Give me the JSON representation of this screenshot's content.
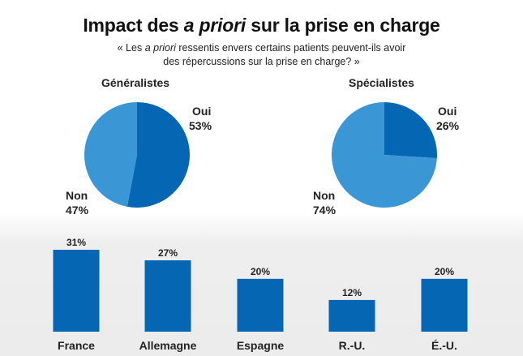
{
  "title_pre": "Impact des ",
  "title_italic": "a priori",
  "title_post": " sur la prise en charge",
  "subtitle_pre": "« Les ",
  "subtitle_italic": "a priori",
  "subtitle_post": " ressentis envers certains patients peuvent-ils avoir des répercussions sur la prise en charge? »",
  "colors": {
    "oui": "#0567b3",
    "non": "#3b96d5",
    "bar": "#0567b3",
    "text": "#222222"
  },
  "chart_data": [
    {
      "type": "pie",
      "title": "Généralistes",
      "slices": [
        {
          "label": "Oui",
          "value": 53,
          "display": "53%"
        },
        {
          "label": "Non",
          "value": 47,
          "display": "47%"
        }
      ]
    },
    {
      "type": "pie",
      "title": "Spécialistes",
      "slices": [
        {
          "label": "Oui",
          "value": 26,
          "display": "26%"
        },
        {
          "label": "Non",
          "value": 74,
          "display": "74%"
        }
      ]
    },
    {
      "type": "bar",
      "categories": [
        "France",
        "Allemagne",
        "Espagne",
        "R.-U.",
        "É.-U."
      ],
      "values": [
        31,
        27,
        20,
        12,
        20
      ],
      "labels": [
        "31%",
        "27%",
        "20%",
        "12%",
        "20%"
      ],
      "ylim": [
        0,
        31
      ]
    }
  ]
}
